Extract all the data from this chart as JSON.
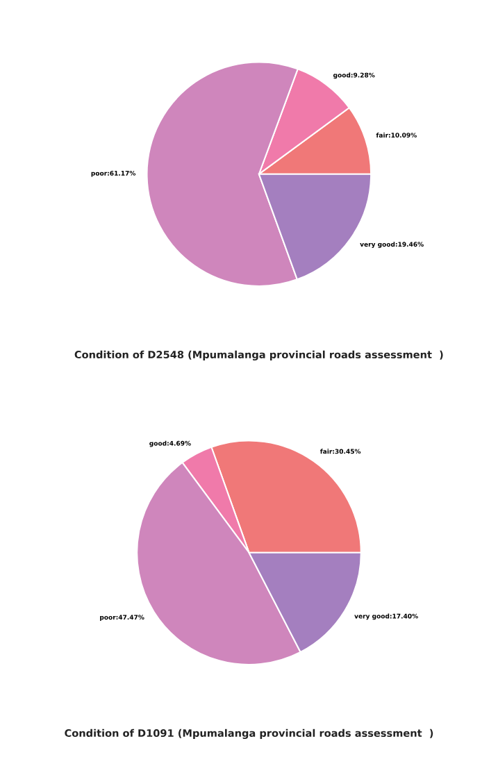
{
  "chart_data": [
    {
      "type": "pie",
      "title": "Condition of D2548 (Mpumalanga provincial roads assessment  )",
      "categories": [
        "fair",
        "good",
        "poor",
        "very good"
      ],
      "values": [
        10.09,
        9.28,
        61.17,
        19.46
      ],
      "value_labels": [
        "10.09%",
        "9.28%",
        "61.17%",
        "19.46%"
      ],
      "colors": [
        "#f07878",
        "#f07aaa",
        "#cf86bc",
        "#a47fbf"
      ]
    },
    {
      "type": "pie",
      "title": "Condition of D1091 (Mpumalanga provincial roads assessment  )",
      "categories": [
        "fair",
        "good",
        "poor",
        "very good"
      ],
      "values": [
        30.45,
        4.69,
        47.47,
        17.4
      ],
      "value_labels": [
        "30.45%",
        "4.69%",
        "47.47%",
        "17.40%"
      ],
      "colors": [
        "#f07878",
        "#f07aaa",
        "#cf86bc",
        "#a47fbf"
      ]
    }
  ]
}
